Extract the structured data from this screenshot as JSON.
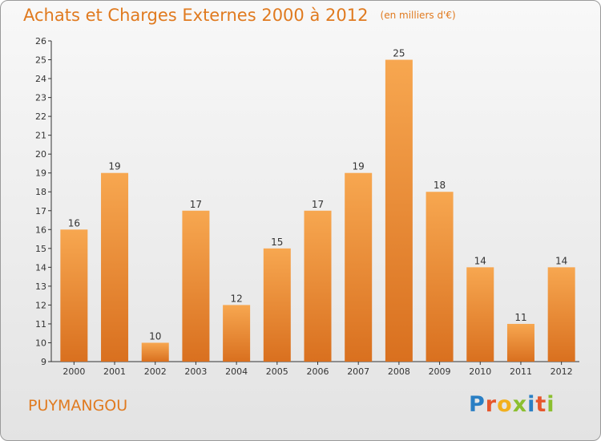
{
  "title": "Achats et Charges Externes 2000 à 2012",
  "unit": "(en milliers d'€)",
  "commune": "PUYMANGOU",
  "logo": {
    "letters": [
      "P",
      "r",
      "o",
      "x",
      "i",
      "t",
      "i"
    ],
    "colors": [
      "#2a7fc4",
      "#e6572d",
      "#f2b01e",
      "#8bbf2f",
      "#2a7fc4",
      "#e6572d",
      "#8bbf2f"
    ]
  },
  "colors": {
    "bar_light": "#f7a750",
    "bar_dark": "#d9701f",
    "title": "#e07a1f"
  },
  "chart_data": {
    "type": "bar",
    "title": "Achats et Charges Externes 2000 à 2012",
    "categories": [
      "2000",
      "2001",
      "2002",
      "2003",
      "2004",
      "2005",
      "2006",
      "2007",
      "2008",
      "2009",
      "2010",
      "2011",
      "2012"
    ],
    "values": [
      16,
      19,
      10,
      17,
      12,
      15,
      17,
      19,
      25,
      18,
      14,
      11,
      14
    ],
    "ylim": [
      9,
      26
    ],
    "yticks": [
      9,
      10,
      11,
      12,
      13,
      14,
      15,
      16,
      17,
      18,
      19,
      20,
      21,
      22,
      23,
      24,
      25,
      26
    ],
    "grid": false
  }
}
